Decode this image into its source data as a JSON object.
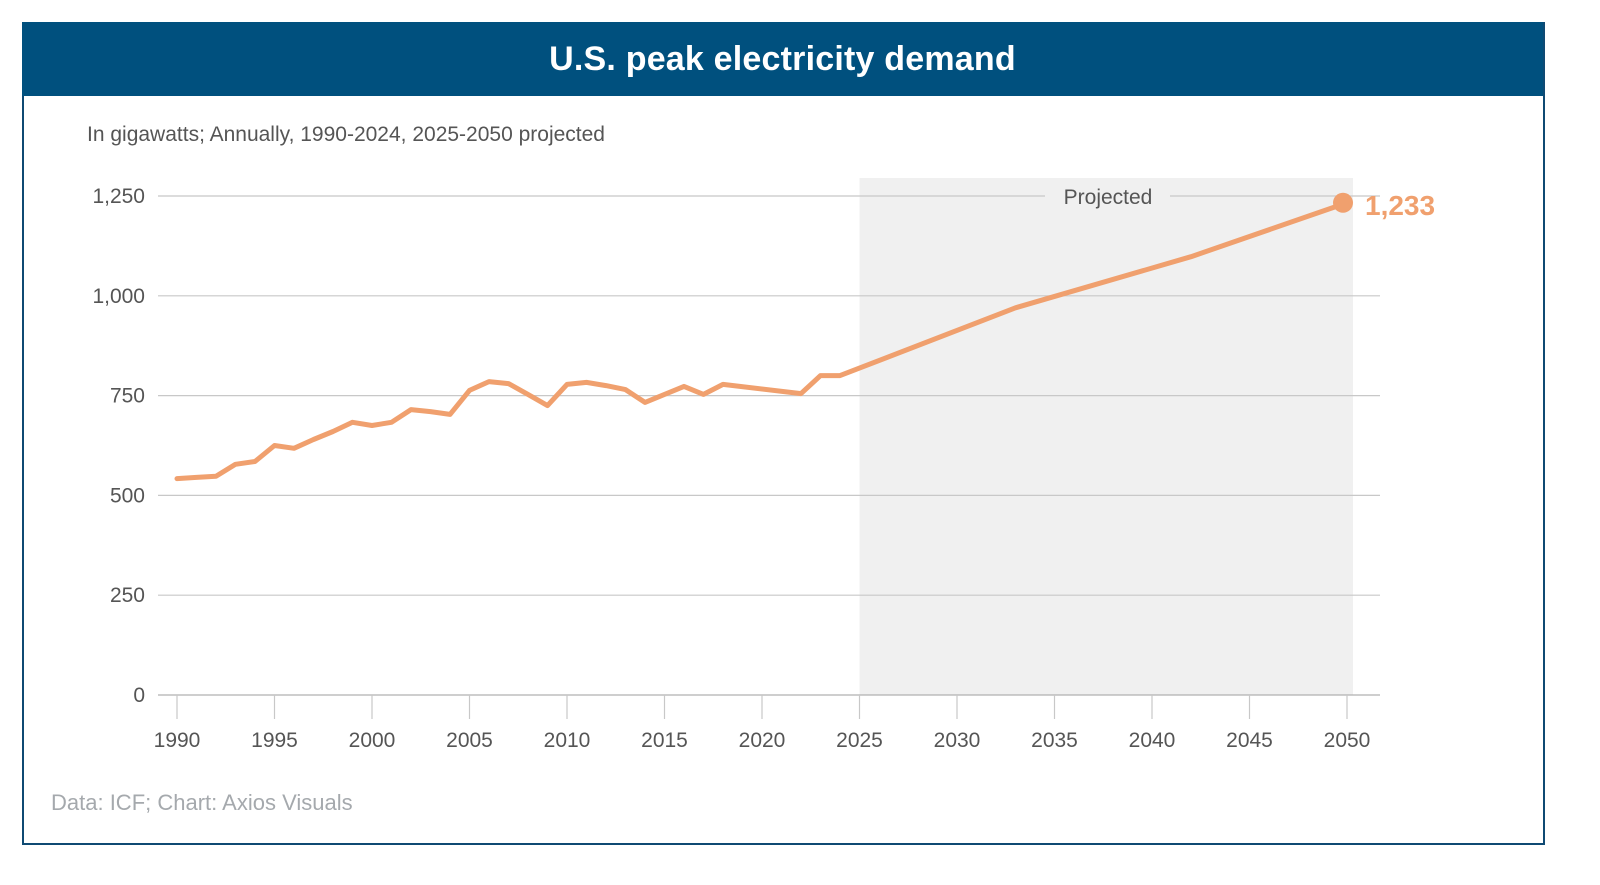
{
  "header": {
    "title": "U.S. peak electricity demand"
  },
  "subtitle": "In gigawatts; Annually, 1990-2024, 2025-2050 projected",
  "source": "Data: ICF; Chart: Axios Visuals",
  "colors": {
    "title_bg": "#00507e",
    "line": "#f0a06e",
    "projected_bg": "#f0f0f0",
    "grid": "#c8c8c8",
    "axis_text": "#555555"
  },
  "chart_data": {
    "type": "line",
    "title": "U.S. peak electricity demand",
    "subtitle": "In gigawatts; Annually, 1990-2024, 2025-2050 projected",
    "xlabel": "",
    "ylabel": "Gigawatts",
    "ylim": [
      0,
      1250
    ],
    "xlim": [
      1990,
      2050
    ],
    "grid": true,
    "yticks": [
      0,
      250,
      500,
      750,
      1000,
      1250
    ],
    "ytick_labels": [
      "0",
      "250",
      "500",
      "750",
      "1,000",
      "1,250"
    ],
    "xticks": [
      1990,
      1995,
      2000,
      2005,
      2010,
      2015,
      2020,
      2025,
      2030,
      2035,
      2040,
      2045,
      2050
    ],
    "xtick_labels": [
      "1990",
      "1995",
      "2000",
      "2005",
      "2010",
      "2015",
      "2020",
      "2025",
      "2030",
      "2035",
      "2040",
      "2045",
      "2050"
    ],
    "projected_region": {
      "start": 2025,
      "end": 2050,
      "label": "Projected"
    },
    "series": [
      {
        "name": "Peak electricity demand",
        "x": [
          1990,
          1991,
          1992,
          1993,
          1994,
          1995,
          1996,
          1997,
          1998,
          1999,
          2000,
          2001,
          2002,
          2003,
          2004,
          2005,
          2006,
          2007,
          2008,
          2009,
          2010,
          2011,
          2012,
          2013,
          2014,
          2015,
          2016,
          2017,
          2018,
          2022,
          2023,
          2024,
          2033,
          2042,
          2050
        ],
        "values": [
          542,
          545,
          548,
          578,
          585,
          625,
          618,
          640,
          660,
          683,
          675,
          683,
          715,
          710,
          703,
          763,
          785,
          780,
          753,
          725,
          778,
          783,
          775,
          765,
          733,
          753,
          773,
          753,
          778,
          755,
          800,
          800,
          970,
          1098,
          1233
        ]
      }
    ],
    "end_label": {
      "x": 2050,
      "value": 1233,
      "text": "1,233"
    }
  }
}
